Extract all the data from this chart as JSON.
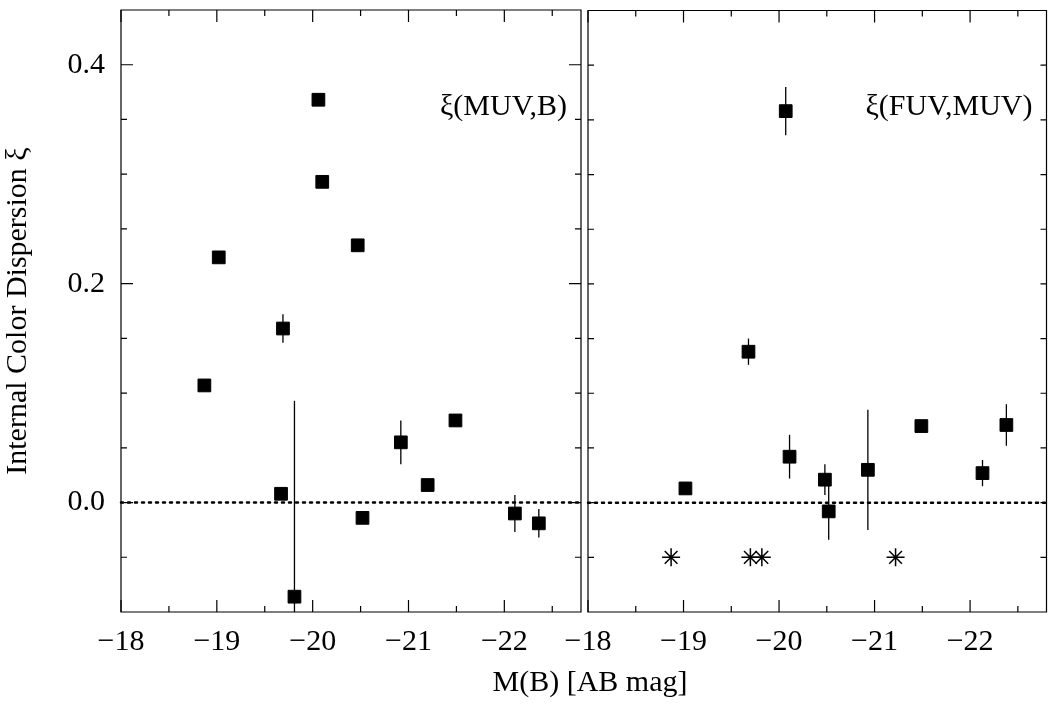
{
  "chart_data": [
    {
      "type": "scatter",
      "ylabel": "Internal Color Dispersion ξ",
      "xlabel": "M(B) [AB mag]",
      "annotations": [
        "ξ(MUV,B)"
      ],
      "xlim": [
        -18,
        -22.8
      ],
      "ylim": [
        -0.1,
        0.45
      ],
      "xticks": [
        {
          "value": -18,
          "label": "−18"
        },
        {
          "value": -18.5,
          "label": null
        },
        {
          "value": -19,
          "label": "−19"
        },
        {
          "value": -19.5,
          "label": null
        },
        {
          "value": -20,
          "label": "−20"
        },
        {
          "value": -20.5,
          "label": null
        },
        {
          "value": -21,
          "label": "−21"
        },
        {
          "value": -21.5,
          "label": null
        },
        {
          "value": -22,
          "label": "−22"
        },
        {
          "value": -22.5,
          "label": null
        }
      ],
      "yticks": [
        {
          "value": -0.05,
          "label": null
        },
        {
          "value": 0,
          "label": "0.0"
        },
        {
          "value": 0.05,
          "label": null
        },
        {
          "value": 0.1,
          "label": null
        },
        {
          "value": 0.15,
          "label": null
        },
        {
          "value": 0.2,
          "label": "0.2"
        },
        {
          "value": 0.25,
          "label": null
        },
        {
          "value": 0.3,
          "label": null
        },
        {
          "value": 0.35,
          "label": null
        },
        {
          "value": 0.4,
          "label": "0.4"
        }
      ],
      "grid": false,
      "ref_lines": [
        {
          "axis": "y",
          "value": 0,
          "line_style": "dotted",
          "color": "#000000"
        }
      ],
      "series": [
        {
          "marker": "square",
          "color": "#000000",
          "x": [
            -18.87,
            -19.02,
            -19.69,
            -19.67,
            -19.81,
            -20.06,
            -20.1,
            -20.47,
            -20.52,
            -20.92,
            -21.2,
            -21.49,
            -22.11,
            -22.36
          ],
          "values": [
            0.107,
            0.224,
            0.159,
            0.008,
            -0.086,
            0.368,
            0.293,
            0.235,
            -0.014,
            0.055,
            0.016,
            0.075,
            -0.01,
            -0.019
          ],
          "errors": [
            null,
            null,
            0.013,
            null,
            [
              -0.1,
              0.093
            ],
            null,
            null,
            null,
            null,
            0.02,
            null,
            null,
            0.017,
            0.013
          ]
        }
      ]
    },
    {
      "type": "scatter",
      "annotations": [
        "ξ(FUV,MUV)"
      ],
      "xlim": [
        -18,
        -22.8
      ],
      "ylim": [
        -0.1,
        0.45
      ],
      "tick_labels": "x",
      "xticks": [
        {
          "value": -18,
          "label": "−18"
        },
        {
          "value": -18.5,
          "label": null
        },
        {
          "value": -19,
          "label": "−19"
        },
        {
          "value": -19.5,
          "label": null
        },
        {
          "value": -20,
          "label": "−20"
        },
        {
          "value": -20.5,
          "label": null
        },
        {
          "value": -21,
          "label": "−21"
        },
        {
          "value": -21.5,
          "label": null
        },
        {
          "value": -22,
          "label": "−22"
        },
        {
          "value": -22.5,
          "label": null
        }
      ],
      "yticks": [
        {
          "value": -0.05,
          "label": null
        },
        {
          "value": 0,
          "label": null
        },
        {
          "value": 0.05,
          "label": null
        },
        {
          "value": 0.1,
          "label": null
        },
        {
          "value": 0.15,
          "label": null
        },
        {
          "value": 0.2,
          "label": null
        },
        {
          "value": 0.25,
          "label": null
        },
        {
          "value": 0.3,
          "label": null
        },
        {
          "value": 0.35,
          "label": null
        },
        {
          "value": 0.4,
          "label": null
        }
      ],
      "grid": false,
      "ref_lines": [
        {
          "axis": "y",
          "value": 0,
          "line_style": "dotted",
          "color": "#000000"
        }
      ],
      "series": [
        {
          "marker": "square",
          "color": "#000000",
          "x": [
            -19.02,
            -19.68,
            -20.07,
            -20.11,
            -20.48,
            -20.52,
            -20.93,
            -21.49,
            -22.13,
            -22.38
          ],
          "values": [
            0.013,
            0.138,
            0.358,
            0.042,
            0.021,
            -0.008,
            0.03,
            0.07,
            0.027,
            0.071
          ],
          "errors": [
            null,
            0.012,
            0.022,
            0.02,
            0.014,
            0.026,
            0.055,
            null,
            0.012,
            0.019
          ]
        },
        {
          "marker": "cross",
          "color": "#000000",
          "x": [
            -18.87,
            -19.7,
            -19.82,
            -21.22
          ],
          "values": [
            -0.05,
            -0.05,
            -0.05,
            -0.05
          ]
        }
      ]
    }
  ]
}
